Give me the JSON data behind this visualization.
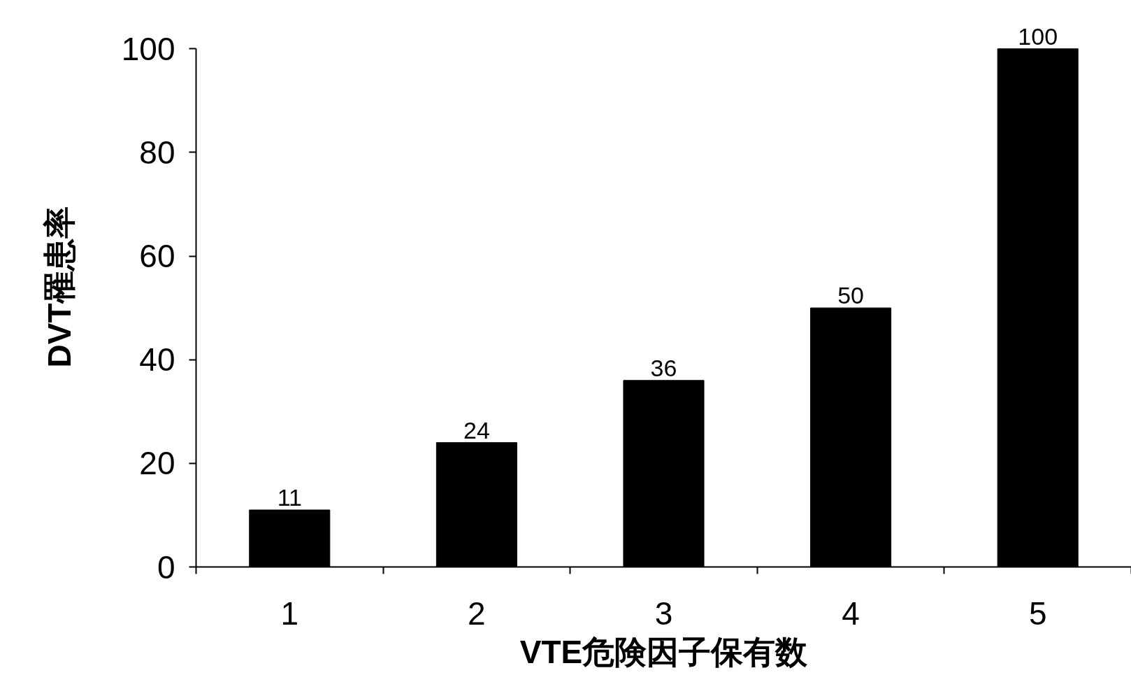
{
  "chart_data": {
    "type": "bar",
    "xlabel": "VTE危険因子保有数",
    "ylabel": "DVT罹患率",
    "categories": [
      "1",
      "2",
      "3",
      "4",
      "5"
    ],
    "values": [
      11,
      24,
      36,
      50,
      100
    ],
    "color": "#000000",
    "ylim": [
      0,
      100
    ],
    "yticks": [
      0,
      20,
      40,
      60,
      80,
      100
    ],
    "data_labels": true,
    "grid": false
  }
}
